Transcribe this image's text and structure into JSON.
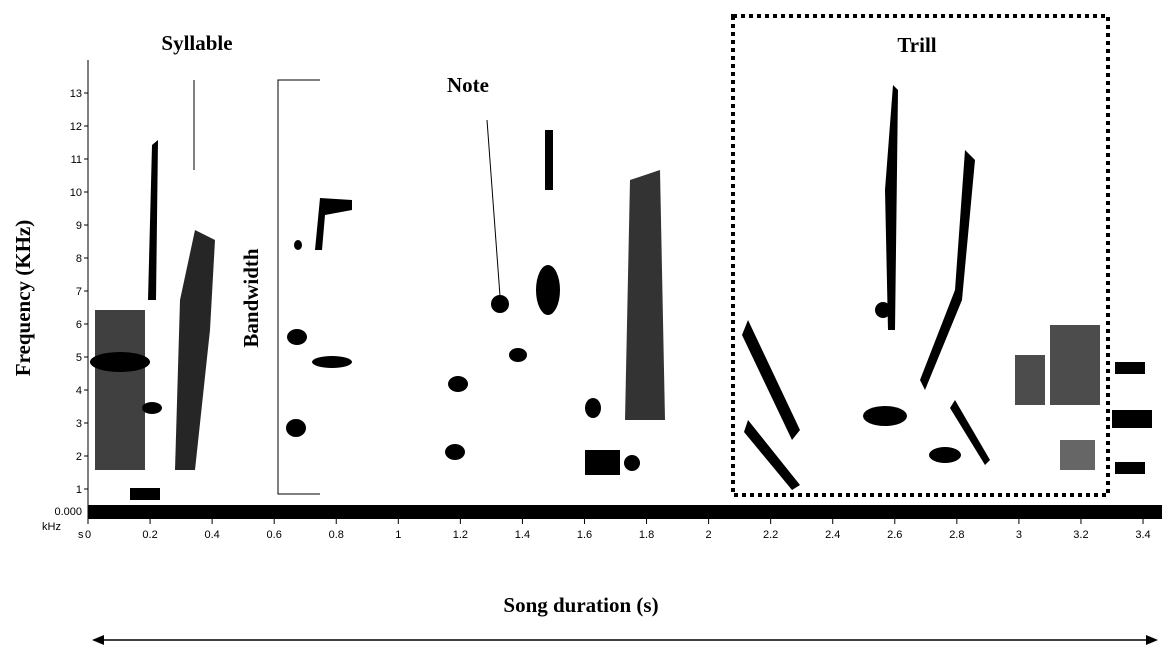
{
  "annotations": {
    "syllable": "Syllable",
    "note": "Note",
    "bandwidth": "Bandwidth",
    "trill": "Trill"
  },
  "axes": {
    "y_label": "Frequency (KHz)",
    "x_label": "Song duration (s)",
    "y_zero_label": "0.000",
    "y_unit": "kHz",
    "x_unit": "s",
    "yticks": [
      1,
      2,
      3,
      4,
      5,
      6,
      7,
      8,
      9,
      10,
      11,
      12,
      13
    ],
    "xticks": [
      0,
      0.2,
      0.4,
      0.6,
      0.8,
      1,
      1.2,
      1.4,
      1.6,
      1.8,
      2,
      2.2,
      2.4,
      2.6,
      2.8,
      3,
      3.2,
      3.4
    ]
  }
}
